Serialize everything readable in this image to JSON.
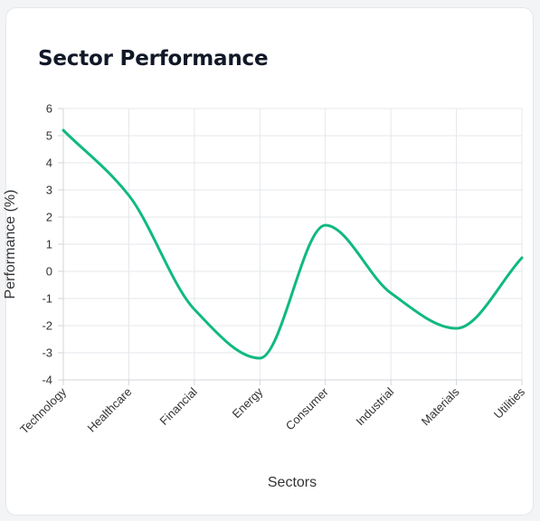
{
  "card": {
    "title": "Sector Performance"
  },
  "chart_data": {
    "type": "line",
    "categories": [
      "Technology",
      "Healthcare",
      "Financial",
      "Energy",
      "Consumer",
      "Industrial",
      "Materials",
      "Utilities"
    ],
    "series": [
      {
        "values": [
          5.2,
          2.8,
          -1.4,
          -3.2,
          1.7,
          -0.8,
          -2.1,
          0.5
        ],
        "color": "#10b981"
      }
    ],
    "xlabel": "Sectors",
    "ylabel": "Performance (%)",
    "ylim": [
      -4,
      6
    ],
    "yticks": [
      6,
      5,
      4,
      3,
      2,
      1,
      0,
      -1,
      -2,
      -3,
      -4
    ],
    "grid": true,
    "curve": "smooth",
    "grid_color": "#e5e7eb",
    "axis_color": "#d1d5db"
  }
}
